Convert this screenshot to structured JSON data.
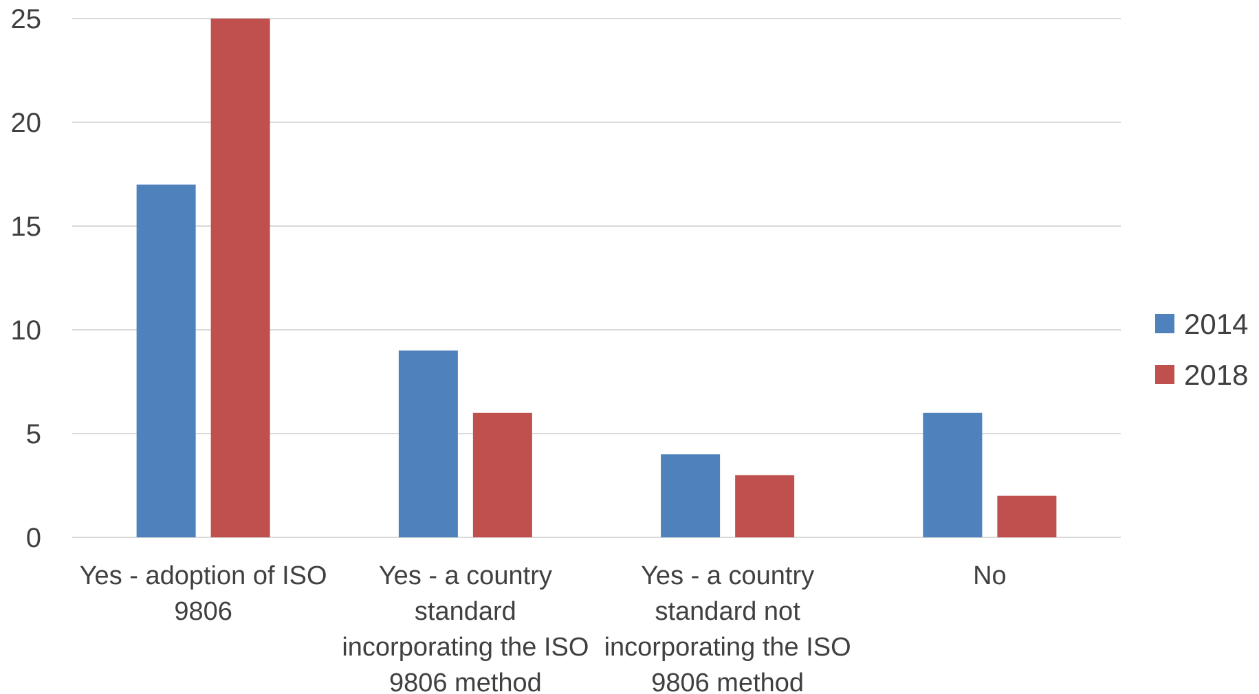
{
  "chart_data": {
    "type": "bar",
    "categories": [
      [
        "Yes - adoption of ISO",
        "9806"
      ],
      [
        "Yes - a country",
        "standard",
        "incorporating the ISO",
        "9806 method"
      ],
      [
        "Yes - a country",
        "standard not",
        "incorporating the ISO",
        "9806 method"
      ],
      [
        "No"
      ]
    ],
    "series": [
      {
        "name": "2014",
        "color": "#4f81bd",
        "values": [
          17,
          9,
          4,
          6
        ]
      },
      {
        "name": "2018",
        "color": "#c0504d",
        "values": [
          25,
          6,
          3,
          2
        ]
      }
    ],
    "ylim": [
      0,
      25
    ],
    "yticks": [
      0,
      5,
      10,
      15,
      20,
      25
    ],
    "grid": true,
    "legend_position": "right",
    "gridline_color": "#d9d9d9"
  }
}
